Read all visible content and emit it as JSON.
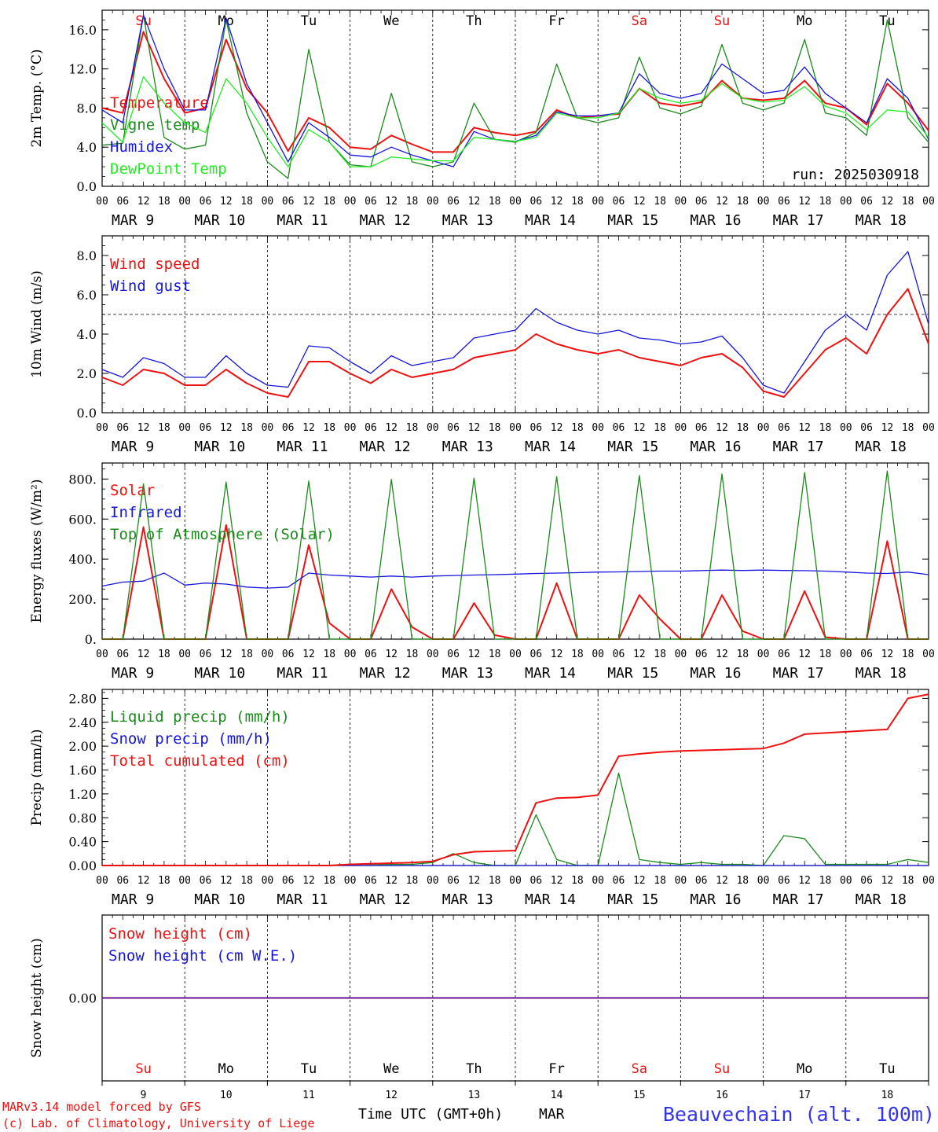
{
  "colors": {
    "red": "#ee1111",
    "green": "#1a8a1a",
    "blue": "#1515dd",
    "lightgreen": "#22ee22",
    "axis": "#000000"
  },
  "x_axis": {
    "hour_ticks": [
      "00",
      "06",
      "12",
      "18"
    ],
    "last_tick": "00",
    "dates": [
      "MAR  9",
      "MAR 10",
      "MAR 11",
      "MAR 12",
      "MAR 13",
      "MAR 14",
      "MAR 15",
      "MAR 16",
      "MAR 17",
      "MAR 18"
    ],
    "weekdays": [
      "Su",
      "Mo",
      "Tu",
      "We",
      "Th",
      "Fr",
      "Sa",
      "Su",
      "Mo",
      "Tu"
    ],
    "weekday_colors": [
      "red",
      "black",
      "black",
      "black",
      "black",
      "black",
      "red",
      "red",
      "black",
      "black"
    ],
    "day_numbers": [
      "9",
      "10",
      "11",
      "12",
      "13",
      "14",
      "15",
      "16",
      "17",
      "18"
    ],
    "title": "Time UTC (GMT+0h)",
    "month": "MAR"
  },
  "footer": {
    "model_line": "MARv3.14 model forced by GFS",
    "copyright_line": "(c) Lab. of Climatology, University of Liege",
    "station": "Beauvechain (alt. 100m)"
  },
  "chart_data": [
    {
      "type": "line",
      "ylabel": "2m Temp. (°C)",
      "ylim": [
        0,
        18
      ],
      "yticks": [
        "0.0",
        "4.0",
        "8.0",
        "12.0",
        "16.0"
      ],
      "annotation": "run: 2025030918",
      "x_days": [
        0,
        0.25,
        0.5,
        0.75,
        1,
        1.25,
        1.5,
        1.75,
        2,
        2.25,
        2.5,
        2.75,
        3,
        3.25,
        3.5,
        3.75,
        4,
        4.25,
        4.5,
        4.75,
        5,
        5.25,
        5.5,
        5.75,
        6,
        6.25,
        6.5,
        6.75,
        7,
        7.25,
        7.5,
        7.75,
        8,
        8.25,
        8.5,
        8.75,
        9,
        9.25,
        9.5,
        9.75,
        10
      ],
      "series": [
        {
          "name": "Temperature",
          "color": "red",
          "values": [
            8.0,
            7.5,
            15.8,
            11.0,
            7.5,
            8.0,
            15.0,
            10.0,
            7.5,
            3.6,
            7.0,
            6.0,
            4.0,
            3.8,
            5.2,
            4.3,
            3.5,
            3.5,
            6.0,
            5.5,
            5.2,
            5.6,
            7.8,
            7.0,
            7.2,
            7.4,
            10.0,
            8.5,
            8.2,
            8.6,
            10.8,
            9.0,
            8.8,
            9.0,
            10.8,
            8.5,
            8.0,
            6.3,
            10.5,
            8.5,
            5.7
          ]
        },
        {
          "name": "Vigne temp",
          "color": "green",
          "values": [
            4.2,
            4.4,
            17.5,
            5.0,
            3.8,
            4.2,
            17.0,
            7.5,
            2.5,
            0.8,
            14.0,
            4.5,
            2.2,
            2.0,
            9.5,
            2.5,
            2.0,
            2.5,
            8.5,
            4.8,
            4.5,
            5.5,
            12.5,
            7.0,
            6.5,
            7.0,
            13.2,
            8.0,
            7.4,
            8.2,
            14.5,
            8.5,
            7.8,
            8.5,
            15.0,
            7.5,
            7.0,
            5.2,
            17.0,
            7.0,
            4.5
          ]
        },
        {
          "name": "Humidex",
          "color": "blue",
          "values": [
            7.8,
            6.5,
            17.5,
            12.0,
            7.8,
            7.8,
            17.2,
            10.5,
            6.5,
            2.5,
            6.5,
            5.0,
            3.2,
            3.0,
            4.0,
            3.2,
            2.6,
            2.0,
            5.6,
            4.8,
            4.6,
            5.2,
            7.6,
            7.2,
            7.2,
            7.5,
            11.5,
            9.5,
            9.0,
            9.5,
            12.5,
            11.0,
            9.5,
            9.8,
            12.2,
            9.5,
            8.0,
            6.5,
            11.0,
            9.0,
            4.8
          ]
        },
        {
          "name": "DewPoint Temp",
          "color": "lightgreen",
          "values": [
            6.5,
            4.5,
            11.2,
            8.5,
            6.5,
            5.5,
            11.0,
            8.5,
            5.0,
            2.0,
            5.8,
            4.5,
            2.0,
            2.0,
            3.0,
            2.8,
            2.6,
            2.6,
            5.0,
            4.8,
            4.6,
            5.0,
            7.5,
            7.0,
            7.0,
            7.5,
            10.0,
            9.0,
            8.5,
            8.8,
            10.5,
            9.0,
            8.6,
            8.8,
            10.2,
            8.2,
            7.5,
            5.8,
            7.8,
            7.6,
            5.0
          ]
        }
      ]
    },
    {
      "type": "line",
      "ylabel": "10m Wind (m/s)",
      "ylim": [
        0,
        9
      ],
      "yticks": [
        "0.0",
        "2.0",
        "4.0",
        "6.0",
        "8.0"
      ],
      "reference_line": 5.0,
      "x_days": [
        0,
        0.25,
        0.5,
        0.75,
        1,
        1.25,
        1.5,
        1.75,
        2,
        2.25,
        2.5,
        2.75,
        3,
        3.25,
        3.5,
        3.75,
        4,
        4.25,
        4.5,
        4.75,
        5,
        5.25,
        5.5,
        5.75,
        6,
        6.25,
        6.5,
        6.75,
        7,
        7.25,
        7.5,
        7.75,
        8,
        8.25,
        8.5,
        8.75,
        9,
        9.25,
        9.5,
        9.75,
        10
      ],
      "series": [
        {
          "name": "Wind speed",
          "color": "red",
          "values": [
            1.8,
            1.4,
            2.2,
            2.0,
            1.4,
            1.4,
            2.2,
            1.5,
            1.0,
            0.8,
            2.6,
            2.6,
            2.0,
            1.5,
            2.2,
            1.8,
            2.0,
            2.2,
            2.8,
            3.0,
            3.2,
            4.0,
            3.5,
            3.2,
            3.0,
            3.2,
            2.8,
            2.6,
            2.4,
            2.8,
            3.0,
            2.3,
            1.1,
            0.8,
            2.0,
            3.2,
            3.8,
            3.0,
            5.0,
            6.3,
            3.5
          ]
        },
        {
          "name": "Wind gust",
          "color": "blue",
          "values": [
            2.2,
            1.8,
            2.8,
            2.5,
            1.8,
            1.8,
            2.9,
            2.0,
            1.4,
            1.3,
            3.4,
            3.3,
            2.6,
            2.0,
            2.9,
            2.4,
            2.6,
            2.8,
            3.8,
            4.0,
            4.2,
            5.3,
            4.6,
            4.2,
            4.0,
            4.2,
            3.8,
            3.7,
            3.5,
            3.6,
            3.9,
            2.8,
            1.4,
            1.0,
            2.6,
            4.2,
            5.0,
            4.2,
            7.0,
            8.2,
            4.5
          ]
        }
      ]
    },
    {
      "type": "line",
      "ylabel": "Energy fluxes (W/m²)",
      "ylim": [
        0,
        880
      ],
      "yticks": [
        "0.",
        "200.",
        "400.",
        "600.",
        "800."
      ],
      "x_days": [
        0,
        0.25,
        0.5,
        0.75,
        1,
        1.25,
        1.5,
        1.75,
        2,
        2.25,
        2.5,
        2.75,
        3,
        3.25,
        3.5,
        3.75,
        4,
        4.25,
        4.5,
        4.75,
        5,
        5.25,
        5.5,
        5.75,
        6,
        6.25,
        6.5,
        6.75,
        7,
        7.25,
        7.5,
        7.75,
        8,
        8.25,
        8.5,
        8.75,
        9,
        9.25,
        9.5,
        9.75,
        10
      ],
      "series": [
        {
          "name": "Solar",
          "color": "red",
          "values": [
            0,
            0,
            560,
            0,
            0,
            0,
            570,
            0,
            0,
            0,
            470,
            80,
            0,
            0,
            250,
            60,
            0,
            0,
            180,
            20,
            0,
            0,
            280,
            0,
            0,
            0,
            220,
            100,
            0,
            0,
            220,
            40,
            0,
            0,
            240,
            10,
            0,
            0,
            490,
            0,
            0
          ]
        },
        {
          "name": "Infrared",
          "color": "blue",
          "values": [
            265,
            285,
            290,
            330,
            270,
            280,
            275,
            260,
            255,
            260,
            330,
            320,
            315,
            310,
            315,
            310,
            315,
            318,
            320,
            322,
            325,
            328,
            330,
            332,
            335,
            336,
            338,
            340,
            340,
            342,
            345,
            343,
            345,
            343,
            342,
            340,
            335,
            330,
            328,
            335,
            322
          ]
        },
        {
          "name": "Top of Atmosphere (Solar)",
          "color": "green",
          "values": [
            0,
            0,
            775,
            0,
            0,
            0,
            785,
            0,
            0,
            0,
            790,
            0,
            0,
            0,
            798,
            0,
            0,
            0,
            805,
            0,
            0,
            0,
            812,
            0,
            0,
            0,
            818,
            0,
            0,
            0,
            825,
            0,
            0,
            0,
            832,
            0,
            0,
            0,
            840,
            0,
            0
          ]
        }
      ]
    },
    {
      "type": "line",
      "ylabel": "Precip (mm/h)",
      "ylim": [
        0,
        2.95
      ],
      "yticks": [
        "0.00",
        "0.40",
        "0.80",
        "1.20",
        "1.60",
        "2.00",
        "2.40",
        "2.80"
      ],
      "x_days": [
        0,
        0.25,
        0.5,
        0.75,
        1,
        1.25,
        1.5,
        1.75,
        2,
        2.25,
        2.5,
        2.75,
        3,
        3.25,
        3.5,
        3.75,
        4,
        4.25,
        4.5,
        4.75,
        5,
        5.25,
        5.5,
        5.75,
        6,
        6.25,
        6.5,
        6.75,
        7,
        7.25,
        7.5,
        7.75,
        8,
        8.25,
        8.5,
        8.75,
        9,
        9.25,
        9.5,
        9.75,
        10
      ],
      "series": [
        {
          "name": "Liquid precip (mm/h)",
          "color": "green",
          "values": [
            0,
            0,
            0,
            0,
            0,
            0,
            0,
            0,
            0,
            0,
            0,
            0,
            0.02,
            0.02,
            0.02,
            0.02,
            0.05,
            0.2,
            0.05,
            0,
            0,
            0.85,
            0.1,
            0,
            0,
            1.55,
            0.1,
            0.05,
            0.02,
            0.05,
            0.02,
            0.02,
            0,
            0.5,
            0.45,
            0.02,
            0.02,
            0.02,
            0.02,
            0.1,
            0.05
          ]
        },
        {
          "name": "Snow precip (mm/h)",
          "color": "blue",
          "values": [
            0,
            0,
            0,
            0,
            0,
            0,
            0,
            0,
            0,
            0,
            0,
            0,
            0,
            0,
            0,
            0,
            0,
            0,
            0,
            0,
            0,
            0,
            0,
            0,
            0,
            0,
            0,
            0,
            0,
            0,
            0,
            0,
            0,
            0,
            0,
            0,
            0,
            0,
            0,
            0,
            0
          ]
        },
        {
          "name": "Total cumulated (cm)",
          "color": "red",
          "values": [
            0,
            0,
            0,
            0,
            0,
            0,
            0,
            0,
            0,
            0,
            0,
            0,
            0.02,
            0.03,
            0.04,
            0.05,
            0.07,
            0.18,
            0.23,
            0.24,
            0.25,
            1.05,
            1.13,
            1.14,
            1.18,
            1.83,
            1.87,
            1.9,
            1.92,
            1.93,
            1.94,
            1.95,
            1.96,
            2.05,
            2.2,
            2.22,
            2.24,
            2.26,
            2.28,
            2.8,
            2.87
          ]
        }
      ]
    },
    {
      "type": "line",
      "ylabel": "Snow height (cm)",
      "ylim": [
        -1,
        1
      ],
      "yticks": [
        "0.00"
      ],
      "x_days": [
        0,
        10
      ],
      "series": [
        {
          "name": "Snow height (cm)",
          "color": "red",
          "values": [
            0,
            0
          ]
        },
        {
          "name": "Snow height (cm W.E.)",
          "color": "blue",
          "values": [
            0,
            0
          ]
        }
      ]
    }
  ]
}
